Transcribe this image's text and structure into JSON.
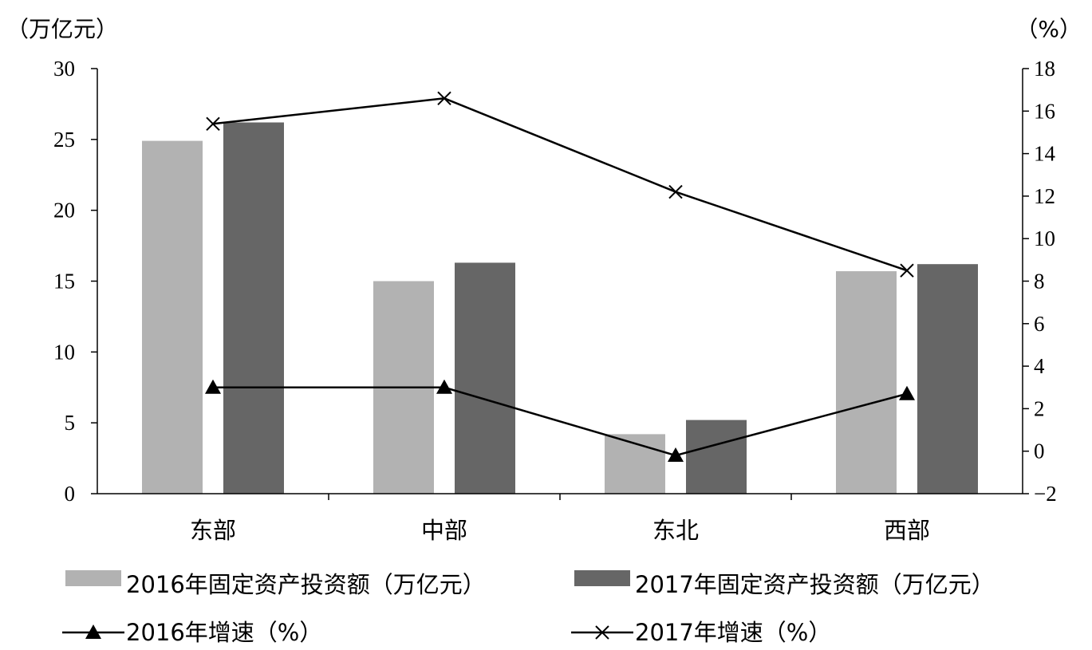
{
  "chart_data": {
    "type": "bar",
    "categories": [
      "东部",
      "中部",
      "东北",
      "西部"
    ],
    "y_left": {
      "unit_label": "（万亿元）",
      "range": [
        0,
        30
      ],
      "ticks": [
        0,
        5,
        10,
        15,
        20,
        25,
        30
      ]
    },
    "y_right": {
      "unit_label": "（%）",
      "range": [
        -2,
        18
      ],
      "ticks": [
        -2,
        0,
        2,
        4,
        6,
        8,
        10,
        12,
        14,
        16,
        18
      ]
    },
    "series": [
      {
        "name": "2016年固定资产投资额（万亿元）",
        "kind": "bar",
        "axis": "left",
        "color": "#b2b2b2",
        "values": [
          24.9,
          15.0,
          4.2,
          15.7
        ]
      },
      {
        "name": "2017年固定资产投资额（万亿元）",
        "kind": "bar",
        "axis": "left",
        "color": "#666666",
        "values": [
          26.2,
          16.3,
          5.2,
          16.2
        ]
      },
      {
        "name": "2016年增速（%）",
        "kind": "line",
        "marker": "triangle",
        "axis": "right",
        "color": "#000000",
        "values": [
          3.0,
          3.0,
          -0.2,
          2.7
        ]
      },
      {
        "name": "2017年增速（%）",
        "kind": "line",
        "marker": "x",
        "axis": "right",
        "color": "#000000",
        "values": [
          15.4,
          16.6,
          12.2,
          8.5
        ]
      }
    ],
    "grid": false,
    "legend_position": "bottom"
  }
}
